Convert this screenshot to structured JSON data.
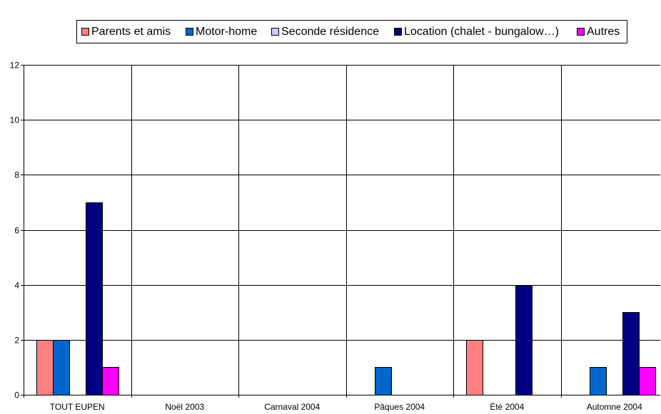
{
  "chart_data": {
    "type": "bar",
    "categories": [
      "TOUT EUPEN",
      "Noël 2003",
      "Carnaval 2004",
      "Pâques 2004",
      "Été 2004",
      "Automne 2004"
    ],
    "series": [
      {
        "name": "Parents et amis",
        "color": "#FF8080",
        "values": [
          2,
          0,
          0,
          0,
          2,
          0
        ]
      },
      {
        "name": "Motor-home",
        "color": "#0066CC",
        "values": [
          2,
          0,
          0,
          1,
          0,
          1
        ]
      },
      {
        "name": "Seconde résidence",
        "color": "#CCCCFF",
        "values": [
          0,
          0,
          0,
          0,
          0,
          0
        ]
      },
      {
        "name": "Location (chalet - bungalow…)",
        "color": "#000080",
        "values": [
          7,
          0,
          0,
          0,
          4,
          3
        ]
      },
      {
        "name": "Autres",
        "color": "#FF00FF",
        "values": [
          1,
          0,
          0,
          0,
          0,
          1
        ]
      }
    ],
    "ylim": [
      0,
      12
    ],
    "yticks": [
      0,
      2,
      4,
      6,
      8,
      10,
      12
    ],
    "grid": true,
    "legend": "top"
  }
}
